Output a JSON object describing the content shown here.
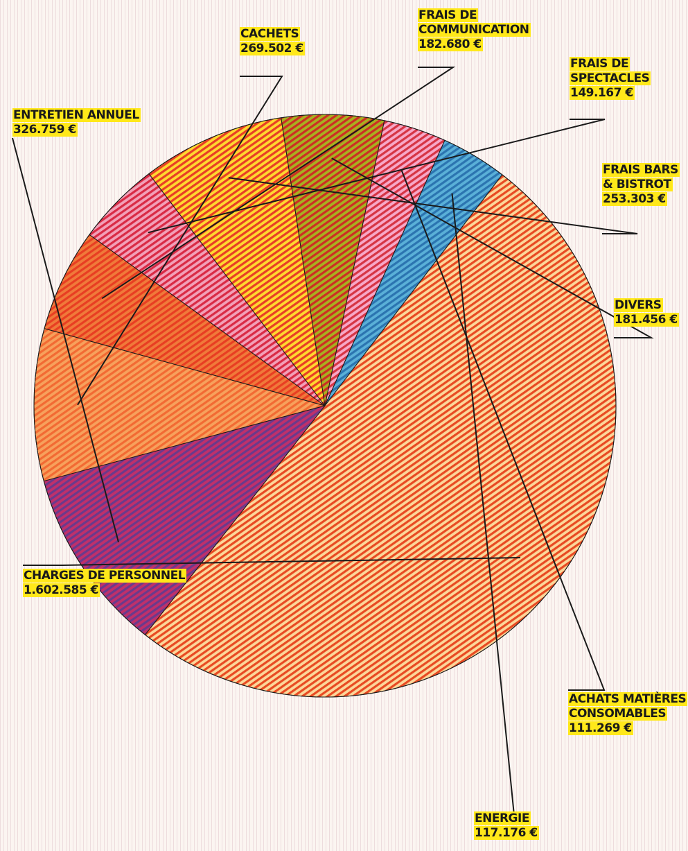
{
  "chart_data": {
    "type": "pie",
    "title": "",
    "slices": [
      {
        "name_lines": [
          "Cachets"
        ],
        "value_label": "269.502 €",
        "value": 269502,
        "color": "#f26a33",
        "stripe": "#f7a15c"
      },
      {
        "name_lines": [
          "Frais de",
          "communication"
        ],
        "value_label": "182.680 €",
        "value": 182680,
        "color": "#e83e22",
        "stripe": "#f07a3a"
      },
      {
        "name_lines": [
          "Frais de",
          "spectacles"
        ],
        "value_label": "149.167 €",
        "value": 149167,
        "color": "#d92a45",
        "stripe": "#f2a0b8"
      },
      {
        "name_lines": [
          "Frais bars",
          "& bistrot"
        ],
        "value_label": "253.303 €",
        "value": 253303,
        "color": "#e83e25",
        "stripe": "#ffd830"
      },
      {
        "name_lines": [
          "Divers"
        ],
        "value_label": "181.456 €",
        "value": 181456,
        "color": "#cc2e24",
        "stripe": "#a8b020"
      },
      {
        "name_lines": [
          "Achats matières",
          "consomables"
        ],
        "value_label": "111.269 €",
        "value": 111269,
        "color": "#d63444",
        "stripe": "#f7a8c8"
      },
      {
        "name_lines": [
          "Energie"
        ],
        "value_label": "117.176 €",
        "value": 117176,
        "color": "#2b74b0",
        "stripe": "#5ab0d8"
      },
      {
        "name_lines": [
          "Charges de personnel"
        ],
        "value_label": "1.602.585 €",
        "value": 1602585,
        "color": "#e84a22",
        "stripe": "#fcd79a"
      },
      {
        "name_lines": [
          "Entretien annuel"
        ],
        "value_label": "326.759 €",
        "value": 326759,
        "color": "#6a3a8c",
        "stripe": "#c0306a"
      }
    ]
  }
}
